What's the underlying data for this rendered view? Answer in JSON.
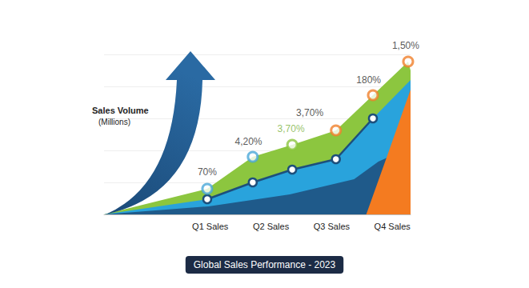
{
  "chart_data": {
    "type": "area",
    "title": "Global Sales Performance - 2023",
    "ylabel": "Sales Volume\n(Millions)",
    "xlim": [
      -0.75,
      4.3
    ],
    "xticks": [
      {
        "value": 1,
        "label": "Q1 Sales"
      },
      {
        "value": 2,
        "label": "Q2 Sales"
      },
      {
        "value": 3,
        "label": "Q3 Sales"
      },
      {
        "value": 4,
        "label": "Q4 Sales"
      }
    ],
    "ylim": [
      0,
      10
    ],
    "yticks": [
      0,
      2,
      4,
      6,
      8,
      10
    ],
    "grid": true,
    "tick_labels": "x",
    "stacked": false,
    "series": [
      {
        "type": "area",
        "color": "#8cc63f",
        "x": [
          -0.75,
          0.95,
          1.7,
          2.35,
          3.07,
          3.68,
          4.26,
          4.3
        ],
        "values": [
          0,
          1.6,
          3.6,
          4.35,
          5.25,
          7.45,
          9.55,
          9.0
        ]
      },
      {
        "type": "area",
        "color": "#29a3dc",
        "x": [
          -0.75,
          0.95,
          1.7,
          2.35,
          3.07,
          3.68,
          4.3
        ],
        "values": [
          0,
          0.95,
          2.0,
          2.8,
          3.45,
          6.0,
          8.4
        ]
      },
      {
        "type": "area",
        "color": "#1f5a8a",
        "x": [
          -0.75,
          0.97,
          2.31,
          3.37,
          3.77,
          4.3
        ],
        "values": [
          0,
          0.5,
          1.25,
          2.2,
          3.3,
          4.2
        ]
      },
      {
        "type": "area",
        "color": "#f47b20",
        "x": [
          3.57,
          3.9,
          4.3
        ],
        "values": [
          0,
          3.5,
          7.8
        ]
      },
      {
        "type": "line",
        "color": "#1d4f7c",
        "marker": "circle",
        "line_style": "solid",
        "x": [
          0.95,
          1.7,
          2.35,
          3.07,
          3.68
        ],
        "values": [
          0.95,
          2.0,
          2.8,
          3.45,
          6.0
        ]
      },
      {
        "type": "scatter",
        "marker": "circle",
        "colors": [
          "#4aa8d8",
          "#4aa8d8",
          "#8cc63f",
          "#f07f2a",
          "#f07f2a",
          "#f07f2a"
        ],
        "x": [
          0.95,
          1.7,
          2.35,
          3.07,
          3.68,
          4.26
        ],
        "values": [
          1.6,
          3.6,
          4.35,
          5.25,
          7.45,
          9.55
        ]
      }
    ],
    "annotations": [
      {
        "text": "70%",
        "x": 0.95,
        "y": 2.65,
        "color": "#2b2b2b"
      },
      {
        "text": "4,20%",
        "x": 1.63,
        "y": 4.55,
        "color": "#2b2b2b"
      },
      {
        "text": "3,70%",
        "x": 2.33,
        "y": 5.35,
        "color": "#7cb342"
      },
      {
        "text": "3,70%",
        "x": 2.64,
        "y": 6.35,
        "color": "#2b2b2b"
      },
      {
        "text": "180%",
        "x": 3.61,
        "y": 8.4,
        "color": "#2b2b2b"
      },
      {
        "text": "1,50%",
        "x": 4.22,
        "y": 10.55,
        "color": "#2b2b2b"
      }
    ]
  }
}
